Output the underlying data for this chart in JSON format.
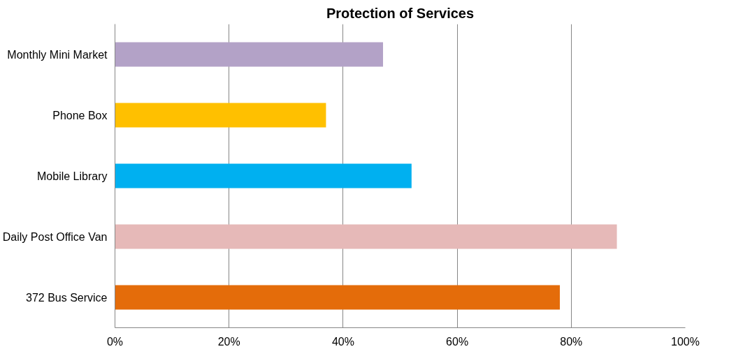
{
  "chart_data": {
    "type": "bar",
    "orientation": "horizontal",
    "title": "Protection of Services",
    "categories": [
      "Monthly Mini Market",
      "Phone Box",
      "Mobile Library",
      "Daily Post Office Van",
      "372 Bus Service"
    ],
    "values": [
      47,
      37,
      52,
      88,
      78
    ],
    "colors": [
      "#b3a2c7",
      "#ffc000",
      "#00b0f0",
      "#e6b9b8",
      "#e46c0a"
    ],
    "xlim": [
      0,
      100
    ],
    "xticks": [
      {
        "value": 0,
        "label": "0%"
      },
      {
        "value": 20,
        "label": "20%"
      },
      {
        "value": 40,
        "label": "40%"
      },
      {
        "value": 60,
        "label": "60%"
      },
      {
        "value": 80,
        "label": "80%"
      },
      {
        "value": 100,
        "label": "100%"
      }
    ],
    "grid": "x"
  }
}
